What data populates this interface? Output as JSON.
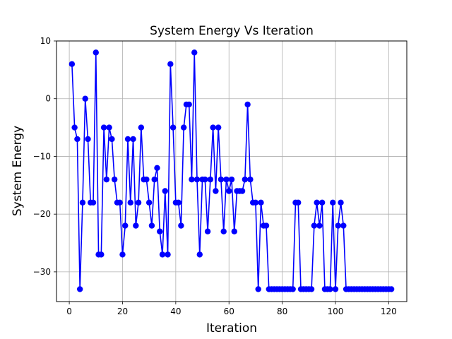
{
  "chart_data": {
    "type": "line",
    "title": "System Energy Vs Iteration",
    "xlabel": "Iteration",
    "ylabel": "System Energy",
    "xlim": [
      -4.8,
      126.8
    ],
    "ylim": [
      -35.15,
      10
    ],
    "xticks": [
      0,
      20,
      40,
      60,
      80,
      100,
      120
    ],
    "yticks": [
      10,
      0,
      -10,
      -20,
      -30
    ],
    "ytick_labels": [
      "10",
      "0",
      "−10",
      "−20",
      "−30"
    ],
    "grid": true,
    "color": "#0000ff",
    "marker": "circle",
    "series": [
      {
        "x": [
          1,
          2,
          3,
          4,
          5,
          6,
          7,
          8,
          9,
          10,
          11,
          12,
          13,
          14,
          15,
          16,
          17,
          18,
          19,
          20,
          21,
          22,
          23,
          24,
          25,
          26,
          27,
          28,
          29,
          30,
          31,
          32,
          33,
          34,
          35,
          36,
          37,
          38,
          39,
          40,
          41,
          42,
          43,
          44,
          45,
          46,
          47,
          48,
          49,
          50,
          51,
          52,
          53,
          54,
          55,
          56,
          57,
          58,
          59,
          60,
          61,
          62,
          63,
          64,
          65,
          66,
          67,
          68,
          69,
          70,
          71,
          72,
          73,
          74,
          75,
          76,
          77,
          78,
          79,
          80,
          81,
          82,
          83,
          84,
          85,
          86,
          87,
          88,
          89,
          90,
          91,
          92,
          93,
          94,
          95,
          96,
          97,
          98,
          99,
          100,
          101,
          102,
          103,
          104,
          105,
          106,
          107,
          108,
          109,
          110,
          111,
          112,
          113,
          114,
          115,
          116,
          117,
          118,
          119,
          120,
          121
        ],
        "y": [
          6,
          -5,
          -7,
          -33,
          -18,
          0,
          -7,
          -18,
          -18,
          8,
          -27,
          -27,
          -5,
          -14,
          -5,
          -7,
          -14,
          -18,
          -18,
          -27,
          -22,
          -7,
          -18,
          -7,
          -22,
          -18,
          -5,
          -14,
          -14,
          -18,
          -22,
          -14,
          -12,
          -23,
          -27,
          -16,
          -27,
          6,
          -5,
          -18,
          -18,
          -22,
          -5,
          -1,
          -1,
          -14,
          8,
          -14,
          -27,
          -14,
          -14,
          -23,
          -14,
          -5,
          -16,
          -5,
          -14,
          -23,
          -14,
          -16,
          -14,
          -23,
          -16,
          -16,
          -16,
          -14,
          -1,
          -14,
          -18,
          -18,
          -33,
          -18,
          -22,
          -22,
          -33,
          -33,
          -33,
          -33,
          -33,
          -33,
          -33,
          -33,
          -33,
          -33,
          -18,
          -18,
          -33,
          -33,
          -33,
          -33,
          -33,
          -22,
          -18,
          -22,
          -18,
          -33,
          -33,
          -33,
          -18,
          -33,
          -22,
          -18,
          -22,
          -33,
          -33,
          -33,
          -33,
          -33,
          -33,
          -33,
          -33,
          -33,
          -33,
          -33,
          -33,
          -33,
          -33,
          -33,
          -33,
          -33,
          -33
        ]
      }
    ]
  }
}
